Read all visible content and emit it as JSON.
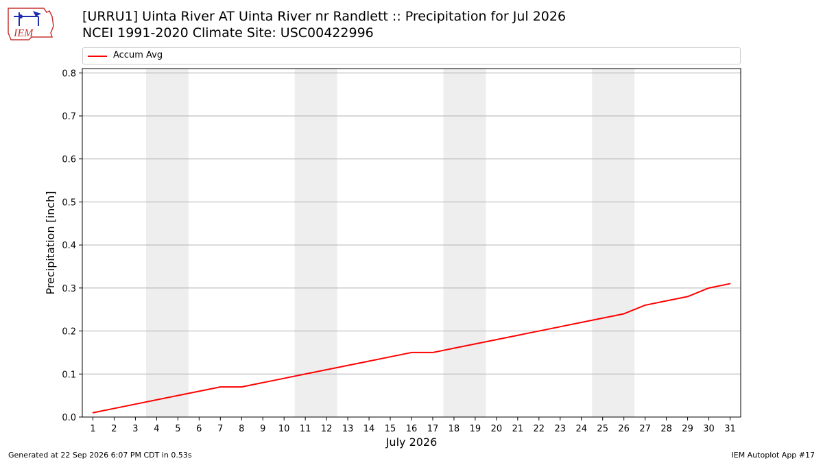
{
  "header": {
    "title_line1": "[URRU1] Uinta River  AT Uinta River nr Randlett :: Precipitation for Jul 2026",
    "title_line2": "NCEI 1991-2020 Climate Site: USC00422996",
    "logo_text": "IEM"
  },
  "footer": {
    "generated": "Generated at 22 Sep 2026 6:07 PM CDT in 0.53s",
    "app": "IEM Autoplot App #17"
  },
  "colors": {
    "line": "#ff0000",
    "weekend_band": "#eeeeee",
    "grid": "#b0b0b0"
  },
  "chart_data": {
    "type": "line",
    "xlabel": "July 2026",
    "ylabel": "Precipitation [inch]",
    "xlim": [
      0.5,
      31.5
    ],
    "ylim": [
      0.0,
      0.81
    ],
    "y_ticks": [
      "0.0",
      "0.1",
      "0.2",
      "0.3",
      "0.4",
      "0.5",
      "0.6",
      "0.7",
      "0.8"
    ],
    "x_ticks": [
      "1",
      "2",
      "3",
      "4",
      "5",
      "6",
      "7",
      "8",
      "9",
      "10",
      "11",
      "12",
      "13",
      "14",
      "15",
      "16",
      "17",
      "18",
      "19",
      "20",
      "21",
      "22",
      "23",
      "24",
      "25",
      "26",
      "27",
      "28",
      "29",
      "30",
      "31"
    ],
    "grid": "horizontal",
    "legend_position": "top",
    "shaded_weekends": [
      [
        4,
        5
      ],
      [
        11,
        12
      ],
      [
        18,
        19
      ],
      [
        25,
        26
      ]
    ],
    "series": [
      {
        "name": "Accum Avg",
        "x": [
          1,
          2,
          3,
          4,
          5,
          6,
          7,
          8,
          9,
          10,
          11,
          12,
          13,
          14,
          15,
          16,
          17,
          18,
          19,
          20,
          21,
          22,
          23,
          24,
          25,
          26,
          27,
          28,
          29,
          30,
          31
        ],
        "values": [
          0.01,
          0.02,
          0.03,
          0.04,
          0.05,
          0.06,
          0.07,
          0.07,
          0.08,
          0.09,
          0.1,
          0.11,
          0.12,
          0.13,
          0.14,
          0.15,
          0.15,
          0.16,
          0.17,
          0.18,
          0.19,
          0.2,
          0.21,
          0.22,
          0.23,
          0.24,
          0.26,
          0.27,
          0.28,
          0.3,
          0.31
        ]
      }
    ]
  }
}
